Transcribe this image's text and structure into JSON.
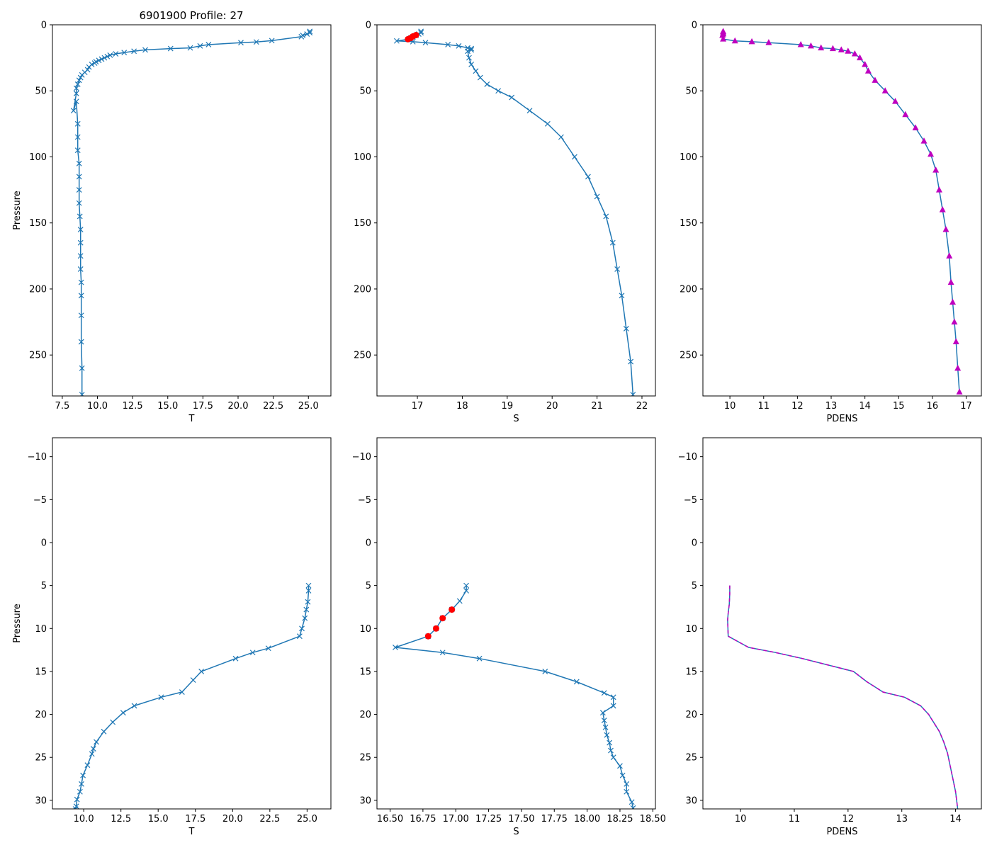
{
  "figure_title": "6901900 Profile: 27",
  "chart_data": [
    {
      "id": "top-T",
      "type": "line",
      "xlabel": "T",
      "ylabel": "Pressure",
      "xlim": [
        6.8,
        26.6
      ],
      "ylim": [
        0,
        281
      ],
      "y_inverted": true,
      "xticks": [
        7.5,
        10.0,
        12.5,
        15.0,
        17.5,
        20.0,
        22.5,
        25.0
      ],
      "xtick_labels": [
        "7.5",
        "10.0",
        "12.5",
        "15.0",
        "17.5",
        "20.0",
        "22.5",
        "25.0"
      ],
      "yticks": [
        0,
        50,
        100,
        150,
        200,
        250
      ],
      "ytick_labels": [
        "0",
        "50",
        "100",
        "150",
        "200",
        "250"
      ],
      "series": [
        {
          "name": "T",
          "color": "#1f77b4",
          "marker": "x",
          "linestyle": "solid",
          "x": [
            25.1,
            25.1,
            24.9,
            24.6,
            24.5,
            22.4,
            21.3,
            20.2,
            17.9,
            17.3,
            16.6,
            15.2,
            13.4,
            12.6,
            11.9,
            11.3,
            10.9,
            10.7,
            10.5,
            10.3,
            10.1,
            9.9,
            9.8,
            9.6,
            9.4,
            9.3,
            9.1,
            8.9,
            8.8,
            8.7,
            8.6,
            8.5,
            8.5,
            8.3,
            8.5,
            8.6,
            8.6,
            8.6,
            8.7,
            8.7,
            8.7,
            8.7,
            8.75,
            8.8,
            8.8,
            8.8,
            8.8,
            8.85,
            8.85,
            8.85,
            8.85,
            8.9,
            8.9
          ],
          "y": [
            5,
            6,
            7,
            8,
            9,
            12,
            13,
            13.5,
            15,
            16,
            17.5,
            18,
            19,
            20,
            21,
            22,
            23,
            24,
            25,
            26,
            27,
            28,
            29,
            30,
            32,
            34,
            36,
            38,
            40,
            42,
            45,
            48,
            52,
            65,
            58,
            75,
            85,
            95,
            105,
            115,
            125,
            135,
            145,
            155,
            165,
            175,
            185,
            195,
            205,
            220,
            240,
            260,
            280
          ]
        }
      ]
    },
    {
      "id": "top-S",
      "type": "line",
      "xlabel": "S",
      "ylabel": "",
      "xlim": [
        16.1,
        22.3
      ],
      "ylim": [
        0,
        281
      ],
      "y_inverted": true,
      "xticks": [
        17,
        18,
        19,
        20,
        21,
        22
      ],
      "xtick_labels": [
        "17",
        "18",
        "19",
        "20",
        "21",
        "22"
      ],
      "yticks": [
        0,
        50,
        100,
        150,
        200,
        250
      ],
      "ytick_labels": [
        "0",
        "50",
        "100",
        "150",
        "200",
        "250"
      ],
      "series": [
        {
          "name": "S",
          "color": "#1f77b4",
          "marker": "x",
          "linestyle": "solid",
          "x": [
            17.08,
            17.08,
            17.03,
            16.97,
            16.9,
            16.85,
            16.8,
            16.54,
            16.9,
            17.18,
            17.68,
            17.92,
            18.12,
            18.2,
            18.2,
            18.12,
            18.15,
            18.2,
            18.3,
            18.4,
            18.55,
            18.8,
            19.1,
            19.5,
            19.9,
            20.2,
            20.5,
            20.8,
            21.0,
            21.2,
            21.35,
            21.45,
            21.55,
            21.65,
            21.75,
            21.8
          ],
          "y": [
            5,
            6,
            7,
            8,
            9,
            10,
            11,
            12.2,
            12.8,
            13.5,
            15,
            16,
            17.5,
            18,
            19,
            20,
            25,
            30,
            35,
            40,
            45,
            50,
            55,
            65,
            75,
            85,
            100,
            115,
            130,
            145,
            165,
            185,
            205,
            230,
            255,
            280
          ]
        },
        {
          "name": "S flagged",
          "color": "#ff0000",
          "marker": "o",
          "linestyle": "none",
          "x": [
            16.97,
            16.9,
            16.85,
            16.79
          ],
          "y": [
            7.8,
            8.8,
            10.0,
            10.9
          ]
        }
      ]
    },
    {
      "id": "top-PDENS",
      "type": "line",
      "xlabel": "PDENS",
      "ylabel": "",
      "xlim": [
        9.2,
        17.45
      ],
      "ylim": [
        0,
        281
      ],
      "y_inverted": true,
      "xticks": [
        10,
        11,
        12,
        13,
        14,
        15,
        16,
        17
      ],
      "xtick_labels": [
        "10",
        "11",
        "12",
        "13",
        "14",
        "15",
        "16",
        "17"
      ],
      "yticks": [
        0,
        50,
        100,
        150,
        200,
        250
      ],
      "ytick_labels": [
        "0",
        "50",
        "100",
        "150",
        "200",
        "250"
      ],
      "series": [
        {
          "name": "PDENS",
          "color": "#bf00bf",
          "line_color": "#1f77b4",
          "marker": "^",
          "linestyle": "solid",
          "x": [
            9.8,
            9.8,
            9.8,
            9.78,
            9.8,
            10.15,
            10.65,
            11.15,
            12.1,
            12.4,
            12.7,
            13.05,
            13.3,
            13.5,
            13.7,
            13.85,
            14.0,
            14.1,
            14.3,
            14.6,
            14.9,
            15.2,
            15.5,
            15.75,
            15.95,
            16.1,
            16.2,
            16.3,
            16.4,
            16.5,
            16.55,
            16.6,
            16.65,
            16.7,
            16.75,
            16.8
          ],
          "y": [
            5,
            6,
            7,
            8,
            10.8,
            12.2,
            12.8,
            13.5,
            15,
            16,
            17.5,
            18,
            19,
            20,
            22,
            25,
            30,
            35,
            42,
            50,
            58,
            68,
            78,
            88,
            98,
            110,
            125,
            140,
            155,
            175,
            195,
            210,
            225,
            240,
            260,
            278
          ]
        }
      ]
    },
    {
      "id": "bottom-T",
      "type": "line",
      "xlabel": "T",
      "ylabel": "Pressure",
      "xlim": [
        7.9,
        26.6
      ],
      "ylim": [
        -12.2,
        31
      ],
      "y_inverted": true,
      "xticks": [
        10.0,
        12.5,
        15.0,
        17.5,
        20.0,
        22.5,
        25.0
      ],
      "xtick_labels": [
        "10.0",
        "12.5",
        "15.0",
        "17.5",
        "20.0",
        "22.5",
        "25.0"
      ],
      "yticks": [
        -10,
        -5,
        0,
        5,
        10,
        15,
        20,
        25,
        30
      ],
      "ytick_labels": [
        "−10",
        "−5",
        "0",
        "5",
        "10",
        "15",
        "20",
        "25",
        "30"
      ],
      "series": [
        {
          "name": "T",
          "color": "#1f77b4",
          "marker": "x",
          "linestyle": "solid",
          "x": [
            25.1,
            25.1,
            25.05,
            24.95,
            24.85,
            24.65,
            24.5,
            22.4,
            21.35,
            20.2,
            17.9,
            17.35,
            16.6,
            15.2,
            13.4,
            12.65,
            11.95,
            11.35,
            10.85,
            10.65,
            10.55,
            10.25,
            9.95,
            9.85,
            9.75,
            9.55,
            9.5,
            9.45
          ],
          "y": [
            5,
            5.6,
            6.9,
            7.8,
            8.8,
            10.0,
            10.9,
            12.3,
            12.8,
            13.5,
            15,
            16,
            17.4,
            18,
            19,
            19.8,
            20.9,
            22,
            23.2,
            24,
            24.6,
            25.9,
            27.1,
            28.1,
            29,
            29.9,
            30.7,
            31
          ]
        }
      ]
    },
    {
      "id": "bottom-S",
      "type": "line",
      "xlabel": "S",
      "ylabel": "",
      "xlim": [
        16.4,
        18.52
      ],
      "ylim": [
        -12.2,
        31
      ],
      "y_inverted": true,
      "xticks": [
        16.5,
        16.75,
        17.0,
        17.25,
        17.5,
        17.75,
        18.0,
        18.25,
        18.5
      ],
      "xtick_labels": [
        "16.50",
        "16.75",
        "17.00",
        "17.25",
        "17.50",
        "17.75",
        "18.00",
        "18.25",
        "18.50"
      ],
      "yticks": [
        -10,
        -5,
        0,
        5,
        10,
        15,
        20,
        25,
        30
      ],
      "ytick_labels": [
        "−10",
        "−5",
        "0",
        "5",
        "10",
        "15",
        "20",
        "25",
        "30"
      ],
      "series": [
        {
          "name": "S",
          "color": "#1f77b4",
          "marker": "x",
          "linestyle": "solid",
          "x": [
            17.08,
            17.08,
            17.03,
            16.97,
            16.9,
            16.85,
            16.79,
            16.54,
            16.9,
            17.18,
            17.68,
            17.92,
            18.13,
            18.2,
            18.2,
            18.12,
            18.13,
            18.14,
            18.15,
            18.17,
            18.18,
            18.2,
            18.25,
            18.27,
            18.3,
            18.3,
            18.34,
            18.35
          ],
          "y": [
            5,
            5.6,
            6.8,
            7.8,
            8.8,
            10.0,
            10.9,
            12.2,
            12.8,
            13.5,
            15,
            16.2,
            17.5,
            18,
            19,
            19.8,
            20.7,
            21.5,
            22.4,
            23.3,
            24.2,
            25,
            26,
            27.1,
            28.1,
            29,
            30.2,
            30.9
          ]
        },
        {
          "name": "S flagged",
          "color": "#ff0000",
          "marker": "o",
          "linestyle": "none",
          "x": [
            16.97,
            16.9,
            16.85,
            16.79
          ],
          "y": [
            7.8,
            8.8,
            10.0,
            10.9
          ]
        }
      ]
    },
    {
      "id": "bottom-PDENS",
      "type": "line",
      "xlabel": "PDENS",
      "ylabel": "",
      "xlim": [
        9.3,
        14.48
      ],
      "ylim": [
        -12.2,
        31
      ],
      "y_inverted": true,
      "xticks": [
        10,
        11,
        12,
        13,
        14
      ],
      "xtick_labels": [
        "10",
        "11",
        "12",
        "13",
        "14"
      ],
      "yticks": [
        -10,
        -5,
        0,
        5,
        10,
        15,
        20,
        25,
        30
      ],
      "ytick_labels": [
        "−10",
        "−5",
        "0",
        "5",
        "10",
        "15",
        "20",
        "25",
        "30"
      ],
      "series": [
        {
          "name": "PDENS",
          "color": "#bf00bf",
          "line_color": "#1f77b4",
          "marker": "none",
          "linestyle": "solid",
          "overlay": "dashed",
          "x": [
            9.8,
            9.8,
            9.79,
            9.77,
            9.76,
            9.77,
            10.15,
            10.65,
            11.15,
            12.1,
            12.35,
            12.65,
            13.05,
            13.35,
            13.5,
            13.6,
            13.7,
            13.78,
            13.85,
            13.9,
            13.95,
            14.0,
            14.04
          ],
          "y": [
            5,
            6,
            7.2,
            8.2,
            9,
            10.9,
            12.2,
            12.8,
            13.5,
            15,
            16.2,
            17.4,
            18,
            19,
            20,
            21,
            22,
            23.2,
            24.5,
            26,
            27.5,
            29,
            31
          ]
        }
      ]
    }
  ]
}
